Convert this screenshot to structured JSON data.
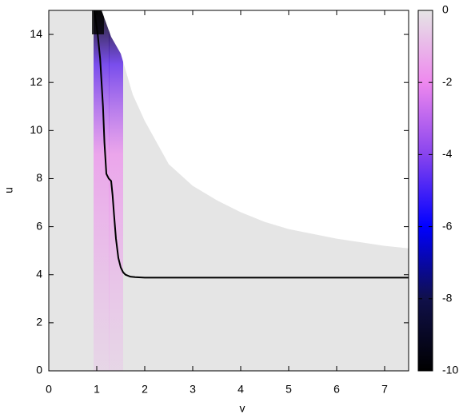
{
  "chart_data": {
    "type": "heatmap",
    "x_label": "v",
    "y_label": "u",
    "xlim": [
      0,
      7.5
    ],
    "ylim": [
      0,
      15
    ],
    "xticks": [
      0,
      1,
      2,
      3,
      4,
      5,
      6,
      7
    ],
    "yticks": [
      0,
      2,
      4,
      6,
      8,
      10,
      12,
      14
    ],
    "colorbar_lim": [
      -10,
      0
    ],
    "colorbar_ticks": [
      0,
      -2,
      -4,
      -6,
      -8,
      -10
    ],
    "colorscale": [
      [
        -10,
        "#000000"
      ],
      [
        -8,
        "#10104a"
      ],
      [
        -6,
        "#0000ff"
      ],
      [
        -4,
        "#8844ee"
      ],
      [
        -2,
        "#ee88ee"
      ],
      [
        0,
        "#e5e5e5"
      ]
    ],
    "series": [
      {
        "color": "#000000",
        "x": [
          0.95,
          1.02,
          1.07,
          1.1,
          1.13,
          1.16,
          1.2,
          1.25,
          1.3,
          1.33,
          1.36,
          1.4,
          1.45,
          1.5,
          1.55,
          1.6,
          1.7,
          1.8,
          2.0,
          2.5,
          3.5,
          5.0,
          7.5
        ],
        "values": [
          15,
          14,
          13,
          12,
          11,
          9.5,
          8.2,
          8.0,
          7.9,
          7.3,
          6.5,
          5.5,
          4.7,
          4.3,
          4.1,
          4.0,
          3.92,
          3.9,
          3.88,
          3.88,
          3.88,
          3.88,
          3.88
        ]
      },
      {
        "color": "#e5e5e5",
        "x": [
          1.1,
          1.3,
          1.5,
          1.75,
          2.0,
          2.5,
          3.0,
          3.5,
          4.0,
          4.5,
          5.0,
          6.0,
          7.0,
          7.5
        ],
        "values": [
          15,
          13.9,
          13.2,
          11.5,
          10.4,
          8.6,
          7.7,
          7.1,
          6.6,
          6.2,
          5.9,
          5.5,
          5.2,
          5.1
        ]
      }
    ]
  }
}
